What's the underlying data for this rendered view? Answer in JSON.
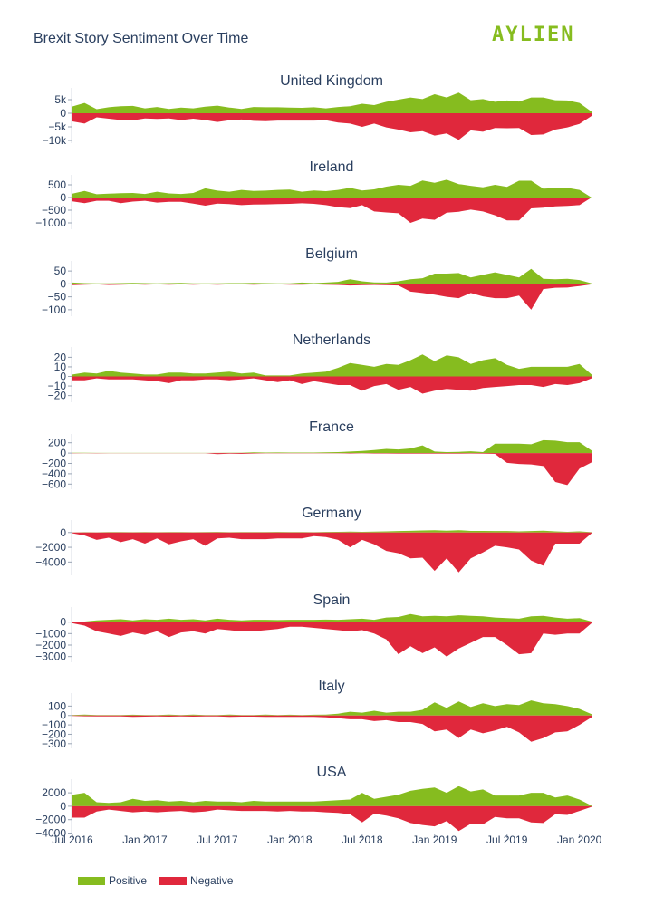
{
  "title": "Brexit Story Sentiment Over Time",
  "logo": "AYLIEN",
  "colors": {
    "positive": "#86bc1f",
    "negative": "#e0283c",
    "axis": "#2a3f5f"
  },
  "legend": [
    {
      "label": "Positive",
      "color": "#86bc1f"
    },
    {
      "label": "Negative",
      "color": "#e0283c"
    }
  ],
  "chart_data": {
    "type": "area",
    "x": [
      "2016-07",
      "2016-08",
      "2016-09",
      "2016-10",
      "2016-11",
      "2016-12",
      "2017-01",
      "2017-02",
      "2017-03",
      "2017-04",
      "2017-05",
      "2017-06",
      "2017-07",
      "2017-08",
      "2017-09",
      "2017-10",
      "2017-11",
      "2017-12",
      "2018-01",
      "2018-02",
      "2018-03",
      "2018-04",
      "2018-05",
      "2018-06",
      "2018-07",
      "2018-08",
      "2018-09",
      "2018-10",
      "2018-11",
      "2018-12",
      "2019-01",
      "2019-02",
      "2019-03",
      "2019-04",
      "2019-05",
      "2019-06",
      "2019-07",
      "2019-08",
      "2019-09",
      "2019-10",
      "2019-11",
      "2019-12",
      "2020-01",
      "2020-02"
    ],
    "xticks": [
      "Jul 2016",
      "Jan 2017",
      "Jul 2017",
      "Jan 2018",
      "Jul 2018",
      "Jan 2019",
      "Jul 2019",
      "Jan 2020"
    ],
    "series_names": [
      "Positive",
      "Negative"
    ],
    "panels": [
      {
        "title": "United Kingdom",
        "yticks": [
          5000,
          0,
          -5000,
          -10000
        ],
        "yticklabels": [
          "5k",
          "0",
          "−5k",
          "−10k"
        ],
        "ylim": [
          -11000,
          8000
        ],
        "positive": [
          2500,
          3800,
          1500,
          2200,
          2600,
          2700,
          1800,
          2300,
          1600,
          2100,
          1800,
          2400,
          2800,
          2100,
          1600,
          2300,
          2200,
          2200,
          2100,
          2000,
          2200,
          1800,
          2300,
          2600,
          3500,
          3000,
          4200,
          5000,
          5800,
          5200,
          7000,
          5800,
          7600,
          4800,
          5200,
          4200,
          4700,
          4300,
          5800,
          5800,
          4800,
          4700,
          3800,
          600
        ],
        "negative": [
          -3000,
          -3800,
          -1500,
          -2000,
          -2500,
          -2600,
          -1900,
          -2100,
          -1900,
          -2500,
          -2000,
          -2500,
          -3200,
          -2600,
          -2300,
          -2800,
          -2900,
          -2700,
          -2700,
          -2700,
          -2700,
          -2600,
          -3400,
          -3800,
          -5000,
          -3800,
          -5200,
          -6000,
          -7000,
          -6600,
          -8200,
          -7400,
          -9800,
          -6300,
          -6800,
          -5400,
          -5500,
          -5400,
          -8000,
          -7800,
          -6000,
          -5200,
          -3900,
          -1000
        ]
      },
      {
        "title": "Ireland",
        "yticks": [
          500,
          0,
          -500,
          -1000
        ],
        "yticklabels": [
          "500",
          "0",
          "−500",
          "−1000"
        ],
        "ylim": [
          -1250,
          750
        ],
        "positive": [
          150,
          260,
          130,
          150,
          170,
          180,
          140,
          230,
          160,
          140,
          180,
          360,
          270,
          230,
          300,
          260,
          270,
          300,
          310,
          230,
          280,
          250,
          300,
          380,
          280,
          320,
          430,
          500,
          460,
          670,
          580,
          700,
          530,
          460,
          400,
          500,
          420,
          660,
          660,
          350,
          370,
          380,
          300,
          0
        ],
        "negative": [
          -150,
          -220,
          -130,
          -130,
          -220,
          -160,
          -130,
          -200,
          -170,
          -170,
          -240,
          -320,
          -240,
          -260,
          -300,
          -280,
          -270,
          -260,
          -250,
          -230,
          -250,
          -300,
          -380,
          -420,
          -300,
          -550,
          -590,
          -620,
          -1000,
          -830,
          -880,
          -600,
          -560,
          -480,
          -550,
          -700,
          -900,
          -900,
          -430,
          -400,
          -350,
          -330,
          -300,
          0
        ]
      },
      {
        "title": "Belgium",
        "yticks": [
          50,
          0,
          -50,
          -100
        ],
        "yticklabels": [
          "50",
          "0",
          "−50",
          "−100"
        ],
        "ylim": [
          -125,
          75
        ],
        "positive": [
          5,
          3,
          2,
          2,
          3,
          4,
          3,
          2,
          3,
          4,
          2,
          2,
          2,
          3,
          3,
          4,
          3,
          2,
          2,
          5,
          3,
          5,
          8,
          18,
          10,
          6,
          5,
          10,
          18,
          22,
          40,
          40,
          42,
          25,
          35,
          45,
          35,
          25,
          58,
          20,
          18,
          20,
          15,
          2
        ],
        "negative": [
          -5,
          -3,
          -2,
          -4,
          -3,
          -2,
          -3,
          -2,
          -3,
          -2,
          -3,
          -2,
          -3,
          -2,
          -2,
          -3,
          -2,
          -2,
          -3,
          -3,
          -2,
          -3,
          -4,
          -6,
          -5,
          -4,
          -5,
          -6,
          -30,
          -35,
          -42,
          -50,
          -55,
          -35,
          -48,
          -55,
          -55,
          -45,
          -100,
          -20,
          -15,
          -14,
          -8,
          -2
        ]
      },
      {
        "title": "Netherlands",
        "yticks": [
          20,
          10,
          0,
          -10,
          -20
        ],
        "yticklabels": [
          "20",
          "10",
          "0",
          "−10",
          "−20"
        ],
        "ylim": [
          -27,
          27
        ],
        "positive": [
          2,
          4,
          3,
          6,
          4,
          3,
          2,
          2,
          4,
          4,
          3,
          3,
          4,
          5,
          3,
          4,
          1,
          1,
          1,
          3,
          4,
          5,
          9,
          14,
          12,
          10,
          13,
          12,
          17,
          23,
          16,
          22,
          20,
          13,
          17,
          19,
          12,
          8,
          10,
          10,
          10,
          10,
          13,
          2
        ],
        "negative": [
          -4,
          -4,
          -2,
          -3,
          -3,
          -3,
          -4,
          -5,
          -7,
          -4,
          -4,
          -3,
          -3,
          -4,
          -3,
          -2,
          -4,
          -6,
          -4,
          -8,
          -5,
          -7,
          -9,
          -9,
          -15,
          -10,
          -8,
          -14,
          -11,
          -18,
          -15,
          -13,
          -14,
          -15,
          -12,
          -11,
          -10,
          -9,
          -9,
          -11,
          -8,
          -9,
          -7,
          -2
        ]
      },
      {
        "title": "France",
        "yticks": [
          200,
          0,
          -200,
          -400,
          -600
        ],
        "yticklabels": [
          "200",
          "0",
          "−200",
          "−400",
          "−600"
        ],
        "ylim": [
          -700,
          300
        ],
        "positive": [
          5,
          5,
          3,
          3,
          3,
          3,
          3,
          3,
          3,
          3,
          3,
          3,
          3,
          5,
          5,
          15,
          10,
          12,
          10,
          10,
          10,
          15,
          20,
          30,
          40,
          60,
          80,
          70,
          90,
          150,
          30,
          20,
          25,
          35,
          20,
          180,
          180,
          180,
          170,
          250,
          240,
          210,
          210,
          50
        ],
        "negative": [
          -5,
          -3,
          -5,
          -3,
          -3,
          -3,
          -3,
          -3,
          -3,
          -3,
          -3,
          -3,
          -20,
          -10,
          -15,
          -8,
          -5,
          -5,
          -5,
          -5,
          -5,
          -5,
          -5,
          -8,
          -5,
          -8,
          -8,
          -10,
          -10,
          -12,
          -10,
          -10,
          -12,
          -8,
          -12,
          -15,
          -190,
          -210,
          -220,
          -250,
          -560,
          -620,
          -300,
          -180
        ]
      },
      {
        "title": "Germany",
        "yticks": [
          0,
          -2000,
          -4000
        ],
        "yticklabels": [
          "0",
          "−2000",
          "−4000"
        ],
        "ylim": [
          -5800,
          1200
        ],
        "positive": [
          20,
          50,
          30,
          60,
          70,
          40,
          60,
          50,
          60,
          70,
          50,
          60,
          80,
          50,
          70,
          60,
          70,
          80,
          60,
          70,
          50,
          80,
          100,
          120,
          100,
          130,
          150,
          200,
          230,
          280,
          300,
          250,
          320,
          220,
          220,
          200,
          200,
          150,
          200,
          250,
          150,
          100,
          150,
          50
        ],
        "negative": [
          -100,
          -400,
          -1000,
          -700,
          -1300,
          -900,
          -1500,
          -800,
          -1600,
          -1200,
          -900,
          -1800,
          -800,
          -700,
          -900,
          -900,
          -900,
          -800,
          -800,
          -800,
          -500,
          -600,
          -1000,
          -2000,
          -1000,
          -1600,
          -2500,
          -2800,
          -3500,
          -3400,
          -5200,
          -3500,
          -5400,
          -3500,
          -2700,
          -1800,
          -2000,
          -2300,
          -3800,
          -4500,
          -1500,
          -1500,
          -1500,
          -100
        ]
      },
      {
        "title": "Spain",
        "yticks": [
          0,
          -1000,
          -2000,
          -3000
        ],
        "yticklabels": [
          "0",
          "−1000",
          "−2000",
          "−3000"
        ],
        "ylim": [
          -3500,
          1000
        ],
        "positive": [
          50,
          50,
          150,
          200,
          250,
          150,
          250,
          200,
          300,
          200,
          250,
          150,
          300,
          200,
          150,
          200,
          200,
          180,
          200,
          200,
          200,
          220,
          200,
          250,
          300,
          200,
          400,
          450,
          700,
          500,
          550,
          500,
          600,
          550,
          500,
          400,
          350,
          300,
          500,
          550,
          400,
          300,
          350,
          50
        ],
        "negative": [
          -100,
          -300,
          -800,
          -1000,
          -1200,
          -900,
          -1100,
          -800,
          -1300,
          -900,
          -800,
          -1000,
          -600,
          -700,
          -800,
          -800,
          -700,
          -600,
          -400,
          -400,
          -500,
          -600,
          -700,
          -800,
          -700,
          -1000,
          -1500,
          -2800,
          -2100,
          -2700,
          -2200,
          -3000,
          -2300,
          -1800,
          -1300,
          -1300,
          -2000,
          -2800,
          -2700,
          -1000,
          -1100,
          -1000,
          -1000,
          -100
        ]
      },
      {
        "title": "Italy",
        "yticks": [
          100,
          0,
          -100,
          -200,
          -300
        ],
        "yticklabels": [
          "100",
          "0",
          "−100",
          "−200",
          "−300"
        ],
        "ylim": [
          -350,
          200
        ],
        "positive": [
          5,
          10,
          5,
          5,
          5,
          8,
          5,
          5,
          10,
          5,
          10,
          5,
          5,
          10,
          5,
          5,
          10,
          5,
          8,
          5,
          8,
          10,
          20,
          40,
          30,
          50,
          30,
          40,
          40,
          60,
          140,
          80,
          150,
          90,
          130,
          100,
          120,
          110,
          160,
          130,
          120,
          100,
          70,
          15
        ],
        "negative": [
          -5,
          -8,
          -10,
          -10,
          -10,
          -15,
          -12,
          -10,
          -12,
          -10,
          -12,
          -10,
          -10,
          -15,
          -12,
          -12,
          -15,
          -15,
          -15,
          -15,
          -15,
          -20,
          -30,
          -40,
          -40,
          -60,
          -50,
          -70,
          -70,
          -90,
          -170,
          -150,
          -240,
          -150,
          -190,
          -160,
          -120,
          -180,
          -280,
          -240,
          -180,
          -170,
          -100,
          -20
        ]
      },
      {
        "title": "USA",
        "yticks": [
          2000,
          0,
          -2000,
          -4000
        ],
        "yticklabels": [
          "2000",
          "0",
          "−2000",
          "−4000"
        ],
        "ylim": [
          -4200,
          3500
        ],
        "positive": [
          1700,
          2000,
          600,
          500,
          600,
          1100,
          800,
          900,
          700,
          800,
          600,
          800,
          700,
          700,
          600,
          800,
          700,
          700,
          700,
          700,
          700,
          800,
          900,
          1000,
          2000,
          1100,
          1400,
          1700,
          2300,
          2600,
          2800,
          2000,
          3000,
          2200,
          2500,
          1600,
          1600,
          1600,
          2000,
          2000,
          1300,
          1600,
          1000,
          100
        ],
        "negative": [
          -1700,
          -1700,
          -800,
          -500,
          -700,
          -900,
          -800,
          -900,
          -800,
          -700,
          -900,
          -800,
          -500,
          -600,
          -700,
          -700,
          -700,
          -800,
          -700,
          -800,
          -800,
          -900,
          -1000,
          -1200,
          -2400,
          -1100,
          -1400,
          -1800,
          -2500,
          -2800,
          -3000,
          -2200,
          -3700,
          -2600,
          -2700,
          -1600,
          -1800,
          -1800,
          -2400,
          -2500,
          -1200,
          -1300,
          -700,
          -100
        ]
      }
    ]
  }
}
